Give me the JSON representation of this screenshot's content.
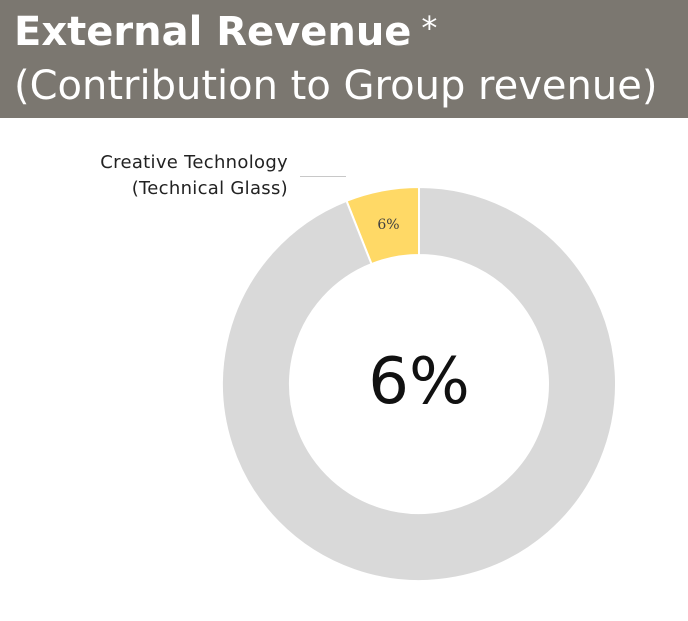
{
  "header": {
    "title": "External Revenue",
    "asterisk": "*",
    "subtitle": "(Contribution to Group revenue)"
  },
  "colors": {
    "header_bg": "#7b7770",
    "highlight": "#ffd966",
    "rest": "#d9d9d9"
  },
  "chart_data": {
    "type": "pie",
    "variant": "donut",
    "title": "External Revenue",
    "subtitle": "(Contribution to Group revenue)",
    "center_label": "6%",
    "slices": [
      {
        "name_line1": "Creative  Technology",
        "name_line2": "(Technical Glass)",
        "value": 6,
        "data_label": "6%",
        "color": "#ffd966"
      },
      {
        "name_line1": "",
        "name_line2": "",
        "value": 94,
        "data_label": "",
        "color": "#d9d9d9"
      }
    ],
    "legend": "none"
  }
}
